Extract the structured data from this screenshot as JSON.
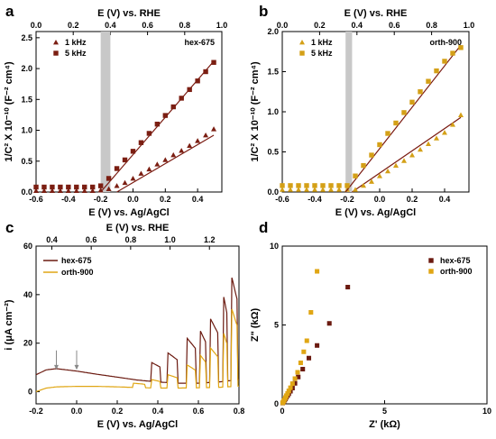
{
  "chart_data": [
    {
      "panel": "a",
      "type": "scatter",
      "annotation": "hex-675",
      "xlabel": "E (V) vs. Ag/AgCl",
      "ylabel": "1/C² X 10⁻¹⁰ (F⁻² cm⁴)",
      "x2label": "E (V) vs. RHE",
      "xlim": [
        -0.6,
        0.55
      ],
      "ylim": [
        0,
        2.6
      ],
      "x2lim": [
        0.0,
        1.0
      ],
      "xticks": [
        "-0.6",
        "-0.4",
        "-0.2",
        "0.0",
        "0.2",
        "0.4"
      ],
      "yticks": [
        "0.0",
        "0.5",
        "1.0",
        "1.5",
        "2.0",
        "2.5"
      ],
      "x2ticks": [
        "0.0",
        "0.2",
        "0.4",
        "0.6",
        "0.8",
        "1.0"
      ],
      "shaded_x": [
        -0.2,
        -0.14
      ],
      "legend_position": "top-left",
      "series": [
        {
          "name": "1 kHz",
          "marker": "triangle",
          "color": "#7b1e12",
          "x": [
            -0.6,
            -0.55,
            -0.5,
            -0.45,
            -0.4,
            -0.35,
            -0.3,
            -0.25,
            -0.2,
            -0.15,
            -0.1,
            -0.05,
            0.0,
            0.05,
            0.1,
            0.15,
            0.2,
            0.25,
            0.3,
            0.35,
            0.4,
            0.45,
            0.5
          ],
          "y": [
            0.02,
            0.02,
            0.02,
            0.02,
            0.02,
            0.02,
            0.02,
            0.02,
            0.03,
            0.05,
            0.1,
            0.15,
            0.22,
            0.3,
            0.37,
            0.45,
            0.52,
            0.6,
            0.67,
            0.75,
            0.83,
            0.92,
            1.02
          ],
          "fit": [
            [
              -0.1,
              0.0
            ],
            [
              0.5,
              0.92
            ]
          ]
        },
        {
          "name": "5 kHz",
          "marker": "square",
          "color": "#7b1e12",
          "x": [
            -0.6,
            -0.55,
            -0.5,
            -0.45,
            -0.4,
            -0.35,
            -0.3,
            -0.25,
            -0.2,
            -0.15,
            -0.1,
            -0.05,
            0.0,
            0.05,
            0.1,
            0.15,
            0.2,
            0.25,
            0.3,
            0.35,
            0.4,
            0.45,
            0.5
          ],
          "y": [
            0.08,
            0.08,
            0.08,
            0.08,
            0.08,
            0.08,
            0.08,
            0.08,
            0.1,
            0.22,
            0.38,
            0.52,
            0.66,
            0.8,
            0.95,
            1.1,
            1.24,
            1.38,
            1.52,
            1.66,
            1.8,
            1.95,
            2.1
          ],
          "fit": [
            [
              -0.2,
              0.0
            ],
            [
              0.5,
              2.12
            ]
          ]
        }
      ]
    },
    {
      "panel": "b",
      "type": "scatter",
      "annotation": "orth-900",
      "xlabel": "E (V) vs. Ag/AgCl",
      "ylabel": "1/C² X 10⁻¹⁰ (F⁻² cm⁴)",
      "x2label": "E (V) vs. RHE",
      "xlim": [
        -0.6,
        0.55
      ],
      "ylim": [
        0,
        2.0
      ],
      "x2lim": [
        0.0,
        1.0
      ],
      "xticks": [
        "-0.6",
        "-0.4",
        "-0.2",
        "0.0",
        "0.2",
        "0.4"
      ],
      "yticks": [
        "0.0",
        "0.5",
        "1.0",
        "1.5",
        "2.0"
      ],
      "x2ticks": [
        "0.0",
        "0.2",
        "0.4",
        "0.6",
        "0.8",
        "1.0"
      ],
      "shaded_x": [
        -0.21,
        -0.17
      ],
      "legend_position": "top-left",
      "series": [
        {
          "name": "1 kHz",
          "marker": "triangle",
          "color": "#d4a017",
          "x": [
            -0.6,
            -0.55,
            -0.5,
            -0.45,
            -0.4,
            -0.35,
            -0.3,
            -0.25,
            -0.2,
            -0.15,
            -0.1,
            -0.05,
            0.0,
            0.05,
            0.1,
            0.15,
            0.2,
            0.25,
            0.3,
            0.35,
            0.4,
            0.45,
            0.5
          ],
          "y": [
            0.03,
            0.03,
            0.03,
            0.03,
            0.03,
            0.03,
            0.03,
            0.03,
            0.03,
            0.03,
            0.08,
            0.13,
            0.2,
            0.26,
            0.33,
            0.39,
            0.46,
            0.53,
            0.6,
            0.67,
            0.74,
            0.84,
            0.96
          ],
          "fit": [
            [
              -0.17,
              0.0
            ],
            [
              0.5,
              0.93
            ]
          ]
        },
        {
          "name": "5 kHz",
          "marker": "square",
          "color": "#d4a017",
          "x": [
            -0.6,
            -0.55,
            -0.5,
            -0.45,
            -0.4,
            -0.35,
            -0.3,
            -0.25,
            -0.2,
            -0.15,
            -0.1,
            -0.05,
            0.0,
            0.05,
            0.1,
            0.15,
            0.2,
            0.25,
            0.3,
            0.35,
            0.4,
            0.45,
            0.5
          ],
          "y": [
            0.08,
            0.08,
            0.08,
            0.08,
            0.08,
            0.08,
            0.08,
            0.08,
            0.08,
            0.2,
            0.33,
            0.46,
            0.59,
            0.73,
            0.86,
            0.99,
            1.12,
            1.25,
            1.38,
            1.51,
            1.63,
            1.73,
            1.8
          ],
          "fit": [
            [
              -0.21,
              0.0
            ],
            [
              0.5,
              1.83
            ]
          ]
        }
      ]
    },
    {
      "panel": "c",
      "type": "line",
      "xlabel": "E (V) vs. Ag/AgCl",
      "ylabel": "i (μA cm⁻²)",
      "x2label": "E (V) vs. RHE",
      "xlim": [
        -0.2,
        0.8
      ],
      "ylim": [
        -5,
        60
      ],
      "x2lim": [
        0.32,
        1.35
      ],
      "xticks": [
        "-0.2",
        "0.0",
        "0.2",
        "0.4",
        "0.6",
        "0.8"
      ],
      "yticks": [
        "0",
        "20",
        "40",
        "60"
      ],
      "x2ticks": [
        "0.4",
        "0.6",
        "0.8",
        "1.0",
        "1.2"
      ],
      "legend_position": "top-left",
      "arrows_at_x": [
        -0.1,
        0.0
      ],
      "series": [
        {
          "name": "hex-675",
          "color": "#6b1a10",
          "dark_current": [
            [
              -0.2,
              7.0
            ],
            [
              -0.15,
              9.0
            ],
            [
              -0.1,
              9.5
            ],
            [
              0.0,
              8.5
            ],
            [
              0.1,
              7.2
            ],
            [
              0.2,
              6.0
            ],
            [
              0.3,
              4.8
            ],
            [
              0.4,
              4.0
            ],
            [
              0.5,
              3.5
            ],
            [
              0.6,
              3.5
            ],
            [
              0.7,
              4.0
            ],
            [
              0.8,
              5.0
            ]
          ],
          "light_on_x": [
            0.37,
            0.45,
            0.545,
            0.61,
            0.66,
            0.725,
            0.765
          ],
          "light_off_x": [
            0.415,
            0.5,
            0.59,
            0.64,
            0.7,
            0.745,
            0.795
          ],
          "peaks": [
            12.0,
            16.0,
            22.0,
            25.0,
            30.0,
            39.0,
            47.0
          ]
        },
        {
          "name": "orth-900",
          "color": "#e0a614",
          "dark_current": [
            [
              -0.2,
              0.0
            ],
            [
              -0.15,
              1.5
            ],
            [
              -0.1,
              2.0
            ],
            [
              0.0,
              2.2
            ],
            [
              0.1,
              2.2
            ],
            [
              0.2,
              2.0
            ],
            [
              0.3,
              1.7
            ],
            [
              0.4,
              1.5
            ],
            [
              0.5,
              1.5
            ],
            [
              0.6,
              1.6
            ],
            [
              0.7,
              1.8
            ],
            [
              0.8,
              2.3
            ]
          ],
          "light_on_x": [
            0.28,
            0.37,
            0.45,
            0.545,
            0.61,
            0.66,
            0.725,
            0.765
          ],
          "light_off_x": [
            0.34,
            0.415,
            0.5,
            0.59,
            0.64,
            0.7,
            0.745,
            0.795
          ],
          "peaks": [
            3.5,
            5.0,
            7.0,
            11.0,
            15.0,
            18.0,
            24.0,
            34.0
          ]
        }
      ]
    },
    {
      "panel": "d",
      "type": "scatter",
      "xlabel": "Z' (kΩ)",
      "ylabel": "Z\" (kΩ)",
      "xlim": [
        0,
        10
      ],
      "ylim": [
        0,
        10
      ],
      "xticks": [
        "0",
        "5",
        "10"
      ],
      "yticks": [
        "0",
        "5",
        "10"
      ],
      "legend_position": "top-right",
      "series": [
        {
          "name": "hex-675",
          "marker": "square",
          "color": "#6b1a10",
          "x": [
            0.02,
            0.05,
            0.08,
            0.12,
            0.16,
            0.2,
            0.26,
            0.32,
            0.4,
            0.5,
            0.62,
            0.78,
            1.0,
            1.3,
            1.7,
            2.3,
            3.2
          ],
          "y": [
            0.05,
            0.1,
            0.16,
            0.24,
            0.32,
            0.42,
            0.52,
            0.64,
            0.8,
            1.0,
            1.3,
            1.7,
            2.2,
            2.9,
            3.7,
            5.1,
            7.4
          ]
        },
        {
          "name": "orth-900",
          "marker": "square",
          "color": "#e0a614",
          "x": [
            0.02,
            0.05,
            0.08,
            0.12,
            0.16,
            0.2,
            0.26,
            0.32,
            0.4,
            0.5,
            0.62,
            0.75,
            0.9,
            1.05,
            1.2,
            1.4,
            1.7
          ],
          "y": [
            0.06,
            0.12,
            0.2,
            0.3,
            0.4,
            0.52,
            0.66,
            0.82,
            1.02,
            1.28,
            1.6,
            2.0,
            2.6,
            3.3,
            4.0,
            5.8,
            8.4
          ]
        }
      ]
    }
  ],
  "panel_labels": [
    "a",
    "b",
    "c",
    "d"
  ]
}
